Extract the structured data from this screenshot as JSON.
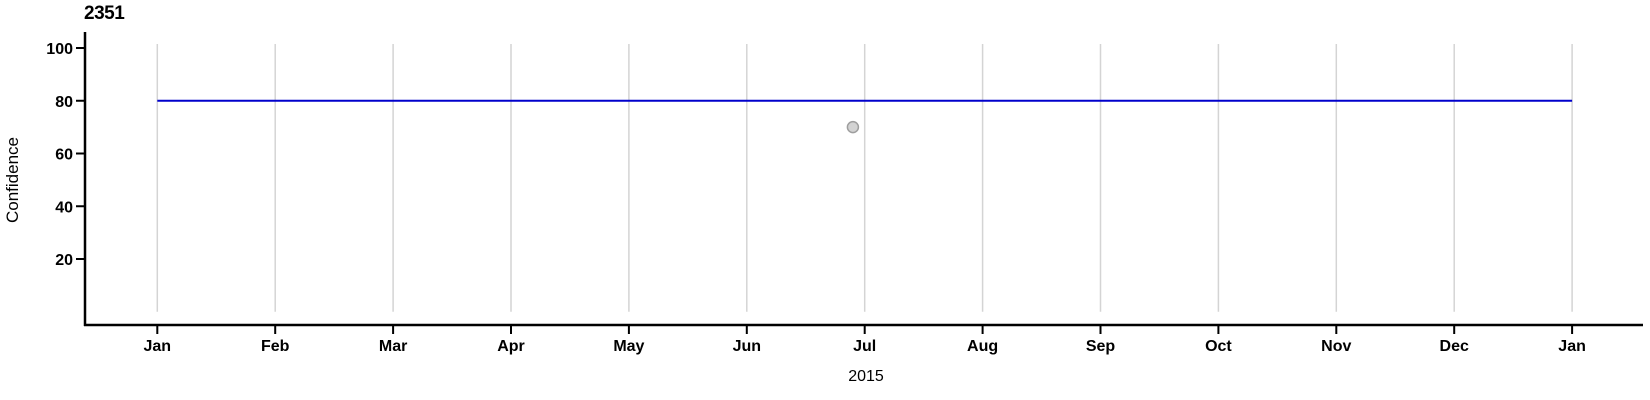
{
  "chart_data": {
    "type": "scatter",
    "title": "2351",
    "xlabel": "2015",
    "ylabel": "Confidence",
    "x_tick_labels": [
      "Jan",
      "Feb",
      "Mar",
      "Apr",
      "May",
      "Jun",
      "Jul",
      "Aug",
      "Sep",
      "Oct",
      "Nov",
      "Dec",
      "Jan"
    ],
    "y_ticks": [
      20,
      40,
      60,
      80,
      100
    ],
    "ylim": [
      0,
      101
    ],
    "grid": "vertical-monthly-only",
    "legend": "none",
    "reference_line": {
      "value": 80,
      "x_start_month": 0,
      "x_end_month": 12,
      "color": "#0000cc"
    },
    "points": [
      {
        "x_month": 5.9,
        "value": 70,
        "fill": "#d3d3d3",
        "stroke": "#9e9e9e"
      }
    ],
    "colors": {
      "axis": "#000000",
      "grid": "#d4d4d4",
      "reference_line": "#0000cc",
      "point_fill": "#d3d3d3",
      "point_stroke": "#9e9e9e"
    }
  }
}
